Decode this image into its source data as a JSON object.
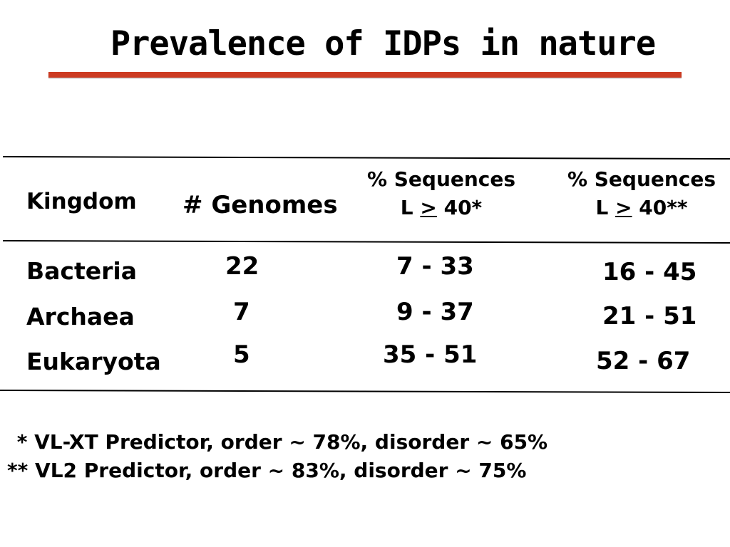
{
  "title": "Prevalence of IDPs in nature",
  "table": {
    "headers": {
      "kingdom": "Kingdom",
      "genomes": "# Genomes",
      "seq1_line1": "% Sequences",
      "seq1_line2_pre": "L ",
      "seq1_line2_op": ">",
      "seq1_line2_post": " 40*",
      "seq2_line1": "% Sequences",
      "seq2_line2_pre": "L ",
      "seq2_line2_op": ">",
      "seq2_line2_post": " 40**"
    },
    "rows": [
      {
        "kingdom": "Bacteria",
        "genomes": "22",
        "seq1": "7 - 33",
        "seq2": "16 - 45"
      },
      {
        "kingdom": "Archaea",
        "genomes": "7",
        "seq1": "9 - 37",
        "seq2": "21 - 51"
      },
      {
        "kingdom": "Eukaryota",
        "genomes": "5",
        "seq1": "35 - 51",
        "seq2": "52 - 67"
      }
    ]
  },
  "footnotes": [
    " * VL-XT Predictor, order ~ 78%, disorder ~ 65%",
    "** VL2 Predictor, order ~ 83%, disorder ~ 75%"
  ],
  "colors": {
    "title_rule": "#cc3b22",
    "text": "#000000",
    "background": "#ffffff"
  }
}
